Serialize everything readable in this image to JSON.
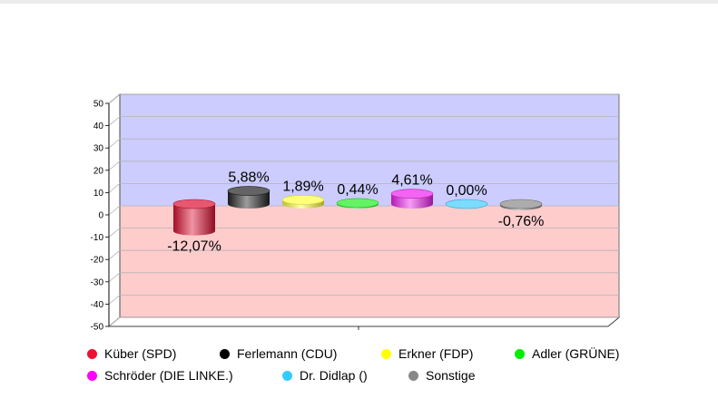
{
  "chart_data": {
    "type": "bar",
    "subtype": "3d-cylinder",
    "categories": [
      "Küber (SPD)",
      "Ferlemann (CDU)",
      "Erkner (FDP)",
      "Adler (GRÜNE)",
      "Schröder (DIE LINKE.)",
      "Dr. Didlap ()",
      "Sonstige"
    ],
    "values": [
      -12.07,
      5.88,
      1.89,
      0.44,
      4.61,
      0.0,
      -0.76
    ],
    "data_labels": [
      "-12,07%",
      "5,88%",
      "1,89%",
      "0,44%",
      "4,61%",
      "0,00%",
      "-0,76%"
    ],
    "colors": [
      "#dd1133",
      "#222222",
      "#ffff44",
      "#22ee22",
      "#ee22ee",
      "#44ccff",
      "#888888"
    ],
    "yticks": [
      "50",
      "40",
      "30",
      "20",
      "10",
      "0",
      "-10",
      "-20",
      "-30",
      "-40",
      "-50"
    ],
    "ylim": [
      -50,
      50
    ],
    "grid": true,
    "legend_position": "bottom",
    "background_positive": "#ccccff",
    "background_negative": "#ffcccc"
  },
  "legend": {
    "items": [
      {
        "label": "Küber (SPD)",
        "color": "#ee1133"
      },
      {
        "label": "Ferlemann (CDU)",
        "color": "#000000"
      },
      {
        "label": "Erkner (FDP)",
        "color": "#ffff00"
      },
      {
        "label": "Adler (GRÜNE)",
        "color": "#00ee00"
      },
      {
        "label": "Schröder (DIE LINKE.)",
        "color": "#ff00ff"
      },
      {
        "label": "Dr. Didlap ()",
        "color": "#33ccff"
      },
      {
        "label": "Sonstige",
        "color": "#888888"
      }
    ]
  }
}
